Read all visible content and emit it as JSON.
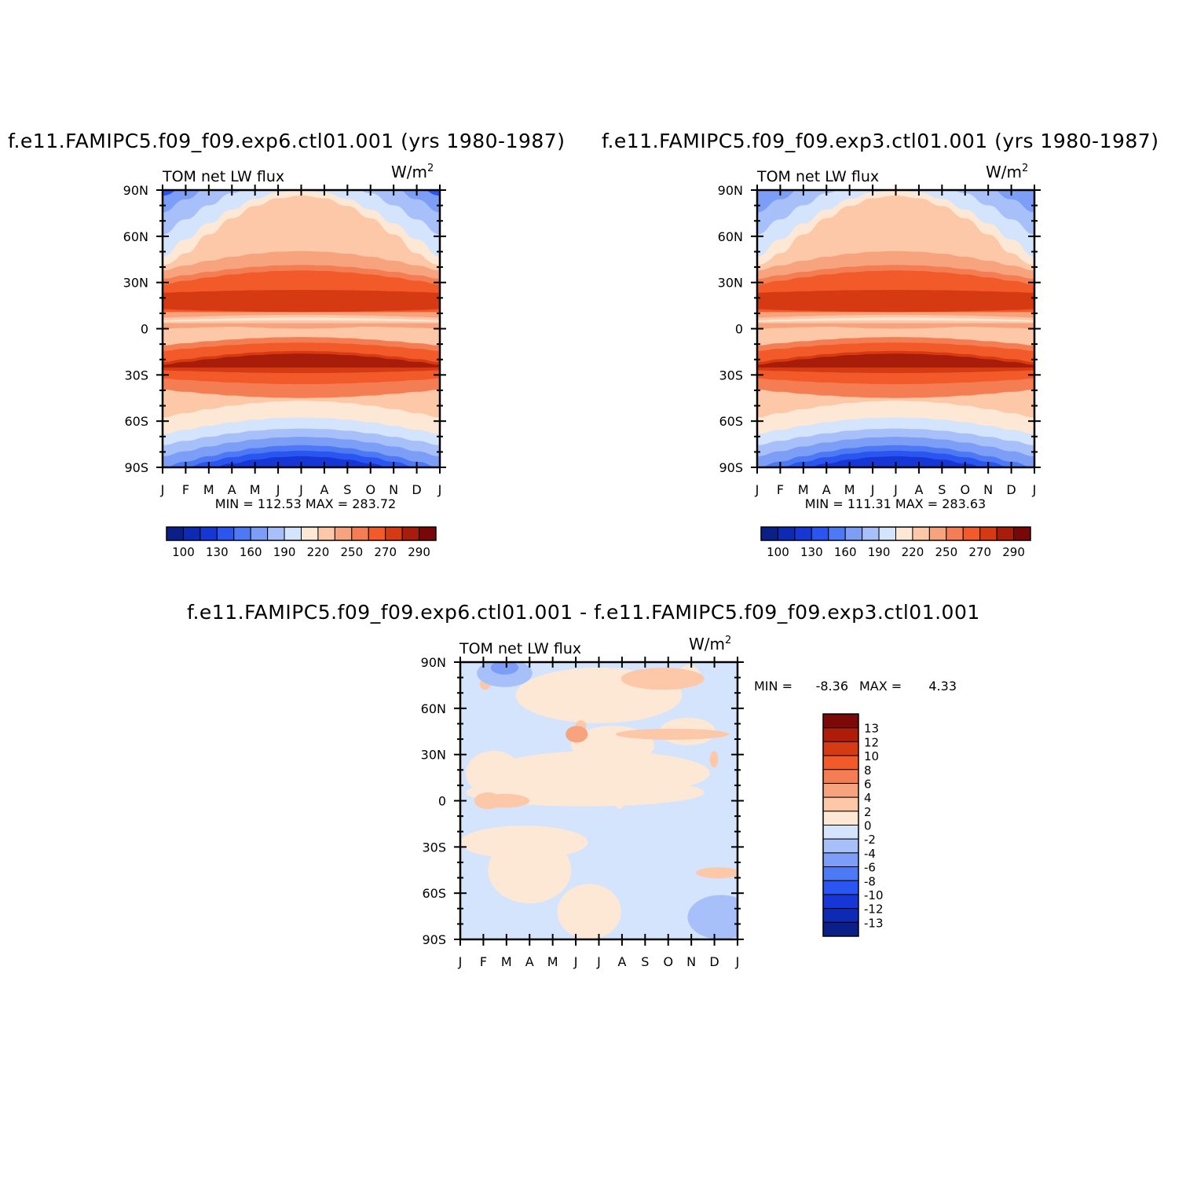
{
  "titles": {
    "left": "f.e11.FAMIPC5.f09_f09.exp6.ctl01.001 (yrs 1980-1987)",
    "right": "f.e11.FAMIPC5.f09_f09.exp3.ctl01.001 (yrs 1980-1987)",
    "bottom": "f.e11.FAMIPC5.f09_f09.exp6.ctl01.001 - f.e11.FAMIPC5.f09_f09.exp3.ctl01.001"
  },
  "chart_data": [
    {
      "type": "heatmap",
      "subtitle_left": "TOM net LW flux",
      "units": "W/m",
      "units_sup": "2",
      "x_tick_labels": [
        "J",
        "F",
        "M",
        "A",
        "M",
        "J",
        "J",
        "A",
        "S",
        "O",
        "N",
        "D",
        "J"
      ],
      "y_tick_labels": [
        "90N",
        "60N",
        "30N",
        "0",
        "30S",
        "60S",
        "90S"
      ],
      "ylim": [
        -90,
        90
      ],
      "stats": "MIN = 112.53 MAX = 283.72",
      "colorbar": {
        "orientation": "horizontal",
        "labels": [
          "100",
          "130",
          "160",
          "190",
          "220",
          "250",
          "270",
          "290"
        ],
        "colors": [
          "#0a1f87",
          "#0c2ab3",
          "#1637d6",
          "#2a55f0",
          "#4d79f5",
          "#7d9ef7",
          "#a8c0fa",
          "#d4e4fc",
          "#fde8d6",
          "#fcc8a8",
          "#f7a47e",
          "#f57d53",
          "#f25a2a",
          "#d63a12",
          "#a81d0a",
          "#780808"
        ]
      },
      "field_description": "zonal-mean annual cycle: maxima (~280) at 15N and 15S subtropics, minima (~115) over Antarctica JJA"
    },
    {
      "type": "heatmap",
      "subtitle_left": "TOM net LW flux",
      "units": "W/m",
      "units_sup": "2",
      "x_tick_labels": [
        "J",
        "F",
        "M",
        "A",
        "M",
        "J",
        "J",
        "A",
        "S",
        "O",
        "N",
        "D",
        "J"
      ],
      "y_tick_labels": [
        "90N",
        "60N",
        "30N",
        "0",
        "30S",
        "60S",
        "90S"
      ],
      "ylim": [
        -90,
        90
      ],
      "stats": "MIN = 111.31 MAX = 283.63",
      "colorbar": {
        "orientation": "horizontal",
        "labels": [
          "100",
          "130",
          "160",
          "190",
          "220",
          "250",
          "270",
          "290"
        ],
        "colors": [
          "#0a1f87",
          "#0c2ab3",
          "#1637d6",
          "#2a55f0",
          "#4d79f5",
          "#7d9ef7",
          "#a8c0fa",
          "#d4e4fc",
          "#fde8d6",
          "#fcc8a8",
          "#f7a47e",
          "#f57d53",
          "#f25a2a",
          "#d63a12",
          "#a81d0a",
          "#780808"
        ]
      }
    },
    {
      "type": "heatmap",
      "subtitle_left": "TOM net LW flux",
      "units": "W/m",
      "units_sup": "2",
      "x_tick_labels": [
        "J",
        "F",
        "M",
        "A",
        "M",
        "J",
        "J",
        "A",
        "S",
        "O",
        "N",
        "D",
        "J"
      ],
      "y_tick_labels": [
        "90N",
        "60N",
        "30N",
        "0",
        "30S",
        "60S",
        "90S"
      ],
      "ylim": [
        -90,
        90
      ],
      "stats_min_label": "MIN =",
      "stats_min_value": "-8.36",
      "stats_max_label": "MAX =",
      "stats_max_value": "4.33",
      "colorbar": {
        "orientation": "vertical",
        "labels": [
          "13",
          "12",
          "10",
          "8",
          "6",
          "4",
          "2",
          "0",
          "-2",
          "-4",
          "-6",
          "-8",
          "-10",
          "-12",
          "-13"
        ],
        "colors": [
          "#7d0808",
          "#b01c0a",
          "#d63a12",
          "#f25a2a",
          "#f57d53",
          "#f7a47e",
          "#fcc8a8",
          "#fde8d6",
          "#d4e4fc",
          "#a8c0fa",
          "#7d9ef7",
          "#4d79f5",
          "#2a55f0",
          "#1637d6",
          "#0c2ab3",
          "#0a1f87"
        ]
      }
    }
  ]
}
